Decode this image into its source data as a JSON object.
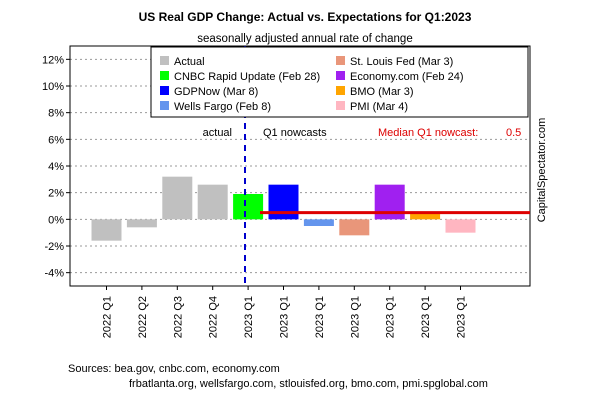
{
  "chart_data": {
    "type": "bar",
    "title": "US Real GDP Change: Actual vs. Expectations for Q1:2023",
    "subtitle": "seasonally adjusted annual rate of change",
    "ylim": [
      -5,
      13
    ],
    "yticks": [
      -4,
      -2,
      0,
      2,
      4,
      6,
      8,
      10,
      12
    ],
    "ytick_labels": [
      "-4%",
      "-2%",
      "0%",
      "2%",
      "4%",
      "6%",
      "8%",
      "10%",
      "12%"
    ],
    "grid": true,
    "categories": [
      "2022 Q1",
      "2022 Q2",
      "2022 Q3",
      "2022 Q4",
      "2023 Q1",
      "2023 Q1",
      "2023 Q1",
      "2023 Q1",
      "2023 Q1",
      "2023 Q1",
      "2023 Q1"
    ],
    "values": [
      -1.6,
      -0.6,
      3.2,
      2.6,
      1.9,
      2.6,
      -0.5,
      -1.2,
      2.6,
      0.5,
      -1.0
    ],
    "series": [
      {
        "name": "Actual",
        "color": "#c0c0c0"
      },
      {
        "name": "CNBC Rapid Update (Feb 28)",
        "color": "#00ff00"
      },
      {
        "name": "GDPNow (Mar 8)",
        "color": "#0000ff"
      },
      {
        "name": "Wells Fargo (Feb 8)",
        "color": "#6495ed"
      },
      {
        "name": "St. Louis Fed (Mar 3)",
        "color": "#e9967a"
      },
      {
        "name": "Economy.com (Feb 24)",
        "color": "#a020f0"
      },
      {
        "name": "BMO (Mar 3)",
        "color": "#ffa500"
      },
      {
        "name": "PMI (Mar 4)",
        "color": "#ffb6c1"
      }
    ],
    "bar_series": [
      0,
      0,
      0,
      0,
      1,
      2,
      3,
      4,
      5,
      6,
      7
    ],
    "median": {
      "label": "Median Q1 nowcast:",
      "value": 0.5,
      "value_label": "0.5",
      "color": "#dd0000"
    },
    "annotations": {
      "actual": "actual",
      "nowcasts": "Q1 nowcasts"
    },
    "legend_position": "top-right",
    "watermark": "CapitalSpectator.com",
    "sources_line1": "Sources: bea.gov, cnbc.com, economy.com",
    "sources_line2": "frbatlanta.org, wellsfargo.com, stlouisfed.org, bmo.com, pmi.spglobal.com"
  }
}
